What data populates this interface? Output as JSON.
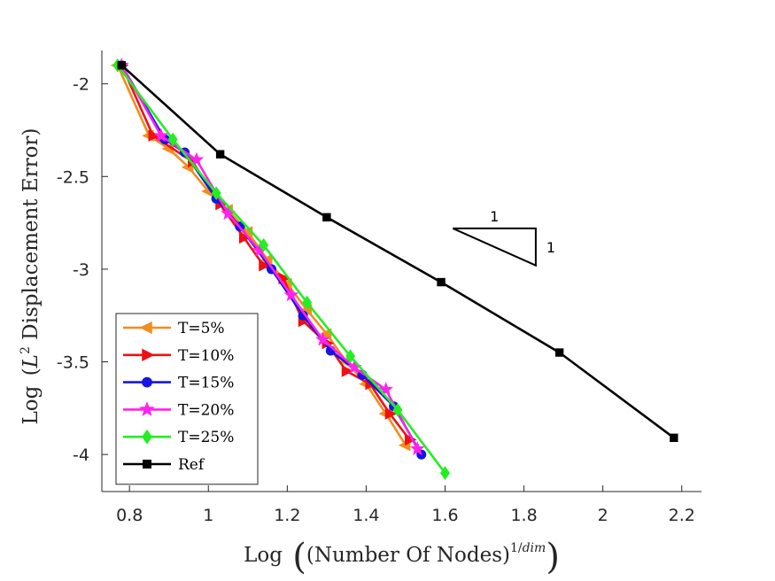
{
  "chart_data": {
    "type": "line",
    "xlabel": {
      "prefix": "Log",
      "inner": "(Number Of Nodes)",
      "superscript": "1/",
      "superscript_italic": "dim"
    },
    "ylabel": {
      "prefix": "Log",
      "script_letter": "L",
      "superscript": "2",
      "rest": " Displacement Error"
    },
    "xlim": [
      0.73,
      2.25
    ],
    "ylim": [
      -4.2,
      -1.82
    ],
    "xticks": [
      0.8,
      1,
      1.2,
      1.4,
      1.6,
      1.8,
      2,
      2.2
    ],
    "xtick_labels": [
      "0.8",
      "1",
      "1.2",
      "1.4",
      "1.6",
      "1.8",
      "2",
      "2.2"
    ],
    "yticks": [
      -2,
      -2.5,
      -3,
      -3.5,
      -4
    ],
    "ytick_labels": [
      "-2",
      "-2.5",
      "-3",
      "-3.5",
      "-4"
    ],
    "grid": false,
    "legend_position": "bottom-left",
    "series": [
      {
        "name": "T=5%",
        "color": "#f28d1e",
        "marker": "triangle-left",
        "x": [
          0.77,
          0.85,
          0.9,
          0.95,
          1.0,
          1.05,
          1.1,
          1.15,
          1.2,
          1.25,
          1.3,
          1.35,
          1.4,
          1.45,
          1.5
        ],
        "y": [
          -1.9,
          -2.28,
          -2.35,
          -2.45,
          -2.58,
          -2.68,
          -2.8,
          -2.95,
          -3.08,
          -3.22,
          -3.35,
          -3.5,
          -3.62,
          -3.78,
          -3.95
        ]
      },
      {
        "name": "T=10%",
        "color": "#ee1111",
        "marker": "triangle-right",
        "x": [
          0.78,
          0.86,
          0.96,
          1.03,
          1.09,
          1.14,
          1.19,
          1.24,
          1.3,
          1.35,
          1.41,
          1.46,
          1.51
        ],
        "y": [
          -1.9,
          -2.28,
          -2.42,
          -2.65,
          -2.83,
          -2.98,
          -3.05,
          -3.28,
          -3.4,
          -3.55,
          -3.62,
          -3.78,
          -3.92
        ]
      },
      {
        "name": "T=15%",
        "color": "#1515e6",
        "marker": "circle",
        "x": [
          0.78,
          0.89,
          0.94,
          1.02,
          1.08,
          1.16,
          1.24,
          1.31,
          1.39,
          1.47,
          1.54
        ],
        "y": [
          -1.9,
          -2.3,
          -2.37,
          -2.62,
          -2.77,
          -3.0,
          -3.25,
          -3.44,
          -3.57,
          -3.74,
          -4.0
        ]
      },
      {
        "name": "T=20%",
        "color": "#ff22ee",
        "marker": "star",
        "x": [
          0.78,
          0.88,
          0.97,
          1.05,
          1.13,
          1.21,
          1.29,
          1.37,
          1.45,
          1.53
        ],
        "y": [
          -1.9,
          -2.28,
          -2.41,
          -2.7,
          -2.9,
          -3.14,
          -3.38,
          -3.53,
          -3.65,
          -3.97
        ]
      },
      {
        "name": "T=25%",
        "color": "#22ee22",
        "marker": "diamond",
        "x": [
          0.77,
          0.91,
          1.02,
          1.14,
          1.25,
          1.36,
          1.48,
          1.6
        ],
        "y": [
          -1.9,
          -2.3,
          -2.59,
          -2.87,
          -3.18,
          -3.47,
          -3.76,
          -4.1
        ]
      },
      {
        "name": "Ref",
        "color": "#000000",
        "marker": "square",
        "x": [
          0.78,
          1.03,
          1.3,
          1.59,
          1.89,
          2.18
        ],
        "y": [
          -1.9,
          -2.38,
          -2.72,
          -3.07,
          -3.45,
          -3.91
        ]
      }
    ],
    "annotations": [
      {
        "type": "slope-triangle",
        "label_top": "1",
        "label_side": "1",
        "corner_a": [
          1.62,
          -2.78
        ],
        "corner_b": [
          1.83,
          -2.78
        ],
        "corner_c": [
          1.83,
          -2.98
        ]
      }
    ]
  }
}
